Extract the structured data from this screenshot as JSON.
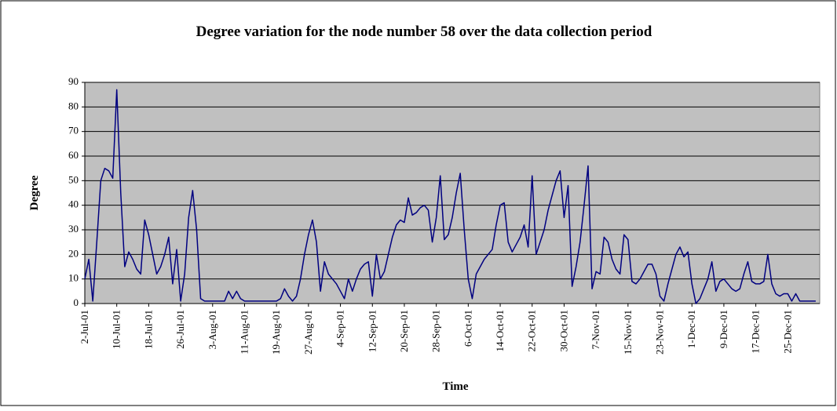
{
  "chart_data": {
    "type": "line",
    "title": "Degree variation for the node number 58 over the data collection period",
    "x_label": "Time",
    "y_label": "Degree",
    "categories": [
      "2-Jul-01",
      null,
      null,
      null,
      null,
      null,
      null,
      null,
      "10-Jul-01",
      null,
      null,
      null,
      null,
      null,
      null,
      null,
      "18-Jul-01",
      null,
      null,
      null,
      null,
      null,
      null,
      null,
      "26-Jul-01",
      null,
      null,
      null,
      null,
      null,
      null,
      null,
      "3-Aug-01",
      null,
      null,
      null,
      null,
      null,
      null,
      null,
      "11-Aug-01",
      null,
      null,
      null,
      null,
      null,
      null,
      null,
      "19-Aug-01",
      null,
      null,
      null,
      null,
      null,
      null,
      null,
      "27-Aug-01",
      null,
      null,
      null,
      null,
      null,
      null,
      null,
      "4-Sep-01",
      null,
      null,
      null,
      null,
      null,
      null,
      null,
      "12-Sep-01",
      null,
      null,
      null,
      null,
      null,
      null,
      null,
      "20-Sep-01",
      null,
      null,
      null,
      null,
      null,
      null,
      null,
      "28-Sep-01",
      null,
      null,
      null,
      null,
      null,
      null,
      null,
      "6-Oct-01",
      null,
      null,
      null,
      null,
      null,
      null,
      null,
      "14-Oct-01",
      null,
      null,
      null,
      null,
      null,
      null,
      null,
      "22-Oct-01",
      null,
      null,
      null,
      null,
      null,
      null,
      null,
      "30-Oct-01",
      null,
      null,
      null,
      null,
      null,
      null,
      null,
      "7-Nov-01",
      null,
      null,
      null,
      null,
      null,
      null,
      null,
      "15-Nov-01",
      null,
      null,
      null,
      null,
      null,
      null,
      null,
      "23-Nov-01",
      null,
      null,
      null,
      null,
      null,
      null,
      null,
      "1-Dec-01",
      null,
      null,
      null,
      null,
      null,
      null,
      null,
      "9-Dec-01",
      null,
      null,
      null,
      null,
      null,
      null,
      null,
      "17-Dec-01",
      null,
      null,
      null,
      null,
      null,
      null,
      null,
      "25-Dec-01",
      null,
      null,
      null,
      null,
      null,
      null,
      null
    ],
    "series": [
      {
        "name": "Degree",
        "color": "#000080",
        "values": [
          10,
          18,
          1,
          25,
          50,
          55,
          54,
          51,
          87,
          45,
          15,
          21,
          18,
          14,
          12,
          34,
          28,
          20,
          12,
          15,
          20,
          27,
          8,
          22,
          1,
          12,
          35,
          46,
          30,
          2,
          1,
          1,
          1,
          1,
          1,
          1,
          5,
          2,
          5,
          2,
          1,
          1,
          1,
          1,
          1,
          1,
          1,
          1,
          1,
          2,
          6,
          3,
          1,
          3,
          10,
          20,
          28,
          34,
          25,
          5,
          17,
          12,
          10,
          8,
          5,
          2,
          10,
          5,
          10,
          14,
          16,
          17,
          3,
          20,
          10,
          13,
          20,
          27,
          32,
          34,
          33,
          43,
          36,
          37,
          39,
          40,
          38,
          25,
          35,
          52,
          26,
          28,
          35,
          45,
          53,
          30,
          10,
          2,
          12,
          15,
          18,
          20,
          22,
          32,
          40,
          41,
          25,
          21,
          24,
          27,
          32,
          23,
          52,
          20,
          25,
          30,
          38,
          44,
          50,
          54,
          35,
          48,
          7,
          15,
          25,
          40,
          56,
          6,
          13,
          12,
          27,
          25,
          18,
          14,
          12,
          28,
          26,
          9,
          8,
          10,
          13,
          16,
          16,
          12,
          3,
          1,
          8,
          14,
          20,
          23,
          19,
          21,
          8,
          0,
          2,
          6,
          10,
          17,
          5,
          9,
          10,
          8,
          6,
          5,
          6,
          12,
          17,
          9,
          8,
          8,
          9,
          20,
          8,
          4,
          3,
          4,
          4,
          1,
          4,
          1,
          1,
          1,
          1,
          1
        ]
      }
    ],
    "ylim": [
      0,
      90
    ],
    "yticks": [
      0,
      10,
      20,
      30,
      40,
      50,
      60,
      70,
      80,
      90
    ],
    "grid": true,
    "plot_background": "#c0c0c0"
  }
}
